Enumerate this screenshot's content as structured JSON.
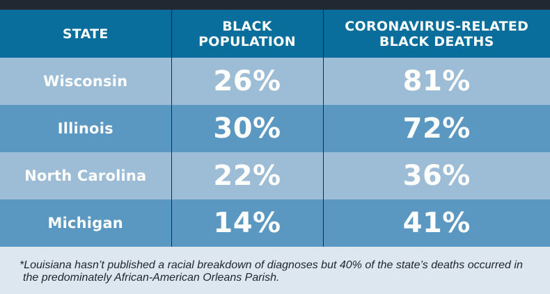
{
  "chart_data": {
    "type": "table",
    "columns": [
      "STATE",
      "BLACK POPULATION",
      "CORONAVIRUS-RELATED BLACK DEATHS"
    ],
    "header_lines": [
      [
        "STATE"
      ],
      [
        "BLACK",
        "POPULATION"
      ],
      [
        "CORONAVIRUS-RELATED",
        "BLACK DEATHS"
      ]
    ],
    "rows": [
      {
        "state": "Wisconsin",
        "black_population": "26%",
        "black_deaths": "81%"
      },
      {
        "state": "Illinois",
        "black_population": "30%",
        "black_deaths": "72%"
      },
      {
        "state": "North Carolina",
        "black_population": "22%",
        "black_deaths": "36%"
      },
      {
        "state": "Michigan",
        "black_population": "14%",
        "black_deaths": "41%"
      }
    ],
    "footnote": "*Louisiana hasn’t published a racial breakdown of diagnoses but 40% of the state’s deaths occurred in the predominately African-American Orleans Parish."
  },
  "colors": {
    "header": "#0a6e9c",
    "row_light": "#9dbdd6",
    "row_dark": "#5b98c1",
    "top_bar": "#222831",
    "footnote_bg": "#dde7ef",
    "divider": "#0f2c44"
  }
}
